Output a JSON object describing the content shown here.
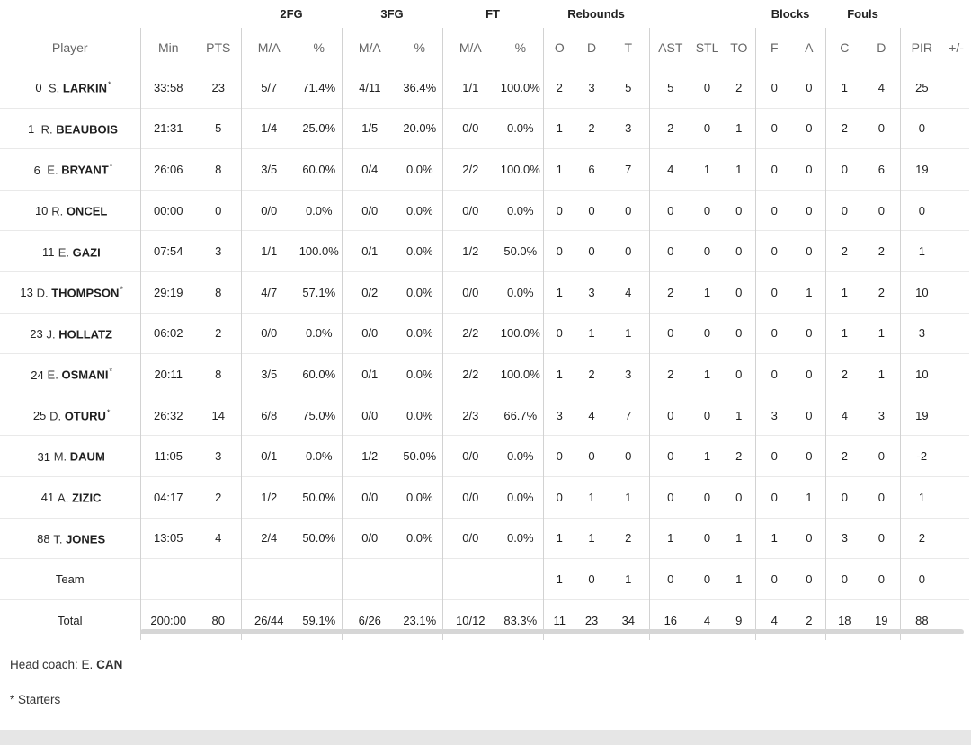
{
  "groups": {
    "fg2": "2FG",
    "fg3": "3FG",
    "ft": "FT",
    "rebounds": "Rebounds",
    "blocks": "Blocks",
    "fouls": "Fouls"
  },
  "columns": [
    "Player",
    "Min",
    "PTS",
    "M/A",
    "%",
    "M/A",
    "%",
    "M/A",
    "%",
    "O",
    "D",
    "T",
    "AST",
    "STL",
    "TO",
    "F",
    "A",
    "C",
    "D",
    "PIR",
    "+/-"
  ],
  "rows": [
    {
      "num": "0",
      "initial": "S.",
      "last": "LARKIN",
      "star": "*",
      "stats": [
        "33:58",
        "23",
        "5/7",
        "71.4%",
        "4/11",
        "36.4%",
        "1/1",
        "100.0%",
        "2",
        "3",
        "5",
        "5",
        "0",
        "2",
        "0",
        "0",
        "1",
        "4",
        "25",
        ""
      ]
    },
    {
      "num": "1",
      "initial": "R.",
      "last": "BEAUBOIS",
      "star": "",
      "stats": [
        "21:31",
        "5",
        "1/4",
        "25.0%",
        "1/5",
        "20.0%",
        "0/0",
        "0.0%",
        "1",
        "2",
        "3",
        "2",
        "0",
        "1",
        "0",
        "0",
        "2",
        "0",
        "0",
        ""
      ]
    },
    {
      "num": "6",
      "initial": "E.",
      "last": "BRYANT",
      "star": "*",
      "stats": [
        "26:06",
        "8",
        "3/5",
        "60.0%",
        "0/4",
        "0.0%",
        "2/2",
        "100.0%",
        "1",
        "6",
        "7",
        "4",
        "1",
        "1",
        "0",
        "0",
        "0",
        "6",
        "19",
        ""
      ]
    },
    {
      "num": "10",
      "initial": "R.",
      "last": "ONCEL",
      "star": "",
      "stats": [
        "00:00",
        "0",
        "0/0",
        "0.0%",
        "0/0",
        "0.0%",
        "0/0",
        "0.0%",
        "0",
        "0",
        "0",
        "0",
        "0",
        "0",
        "0",
        "0",
        "0",
        "0",
        "0",
        ""
      ]
    },
    {
      "num": "11",
      "initial": "E.",
      "last": "GAZI",
      "star": "",
      "stats": [
        "07:54",
        "3",
        "1/1",
        "100.0%",
        "0/1",
        "0.0%",
        "1/2",
        "50.0%",
        "0",
        "0",
        "0",
        "0",
        "0",
        "0",
        "0",
        "0",
        "2",
        "2",
        "1",
        ""
      ]
    },
    {
      "num": "13",
      "initial": "D.",
      "last": "THOMPSON",
      "star": "*",
      "stats": [
        "29:19",
        "8",
        "4/7",
        "57.1%",
        "0/2",
        "0.0%",
        "0/0",
        "0.0%",
        "1",
        "3",
        "4",
        "2",
        "1",
        "0",
        "0",
        "1",
        "1",
        "2",
        "10",
        ""
      ]
    },
    {
      "num": "23",
      "initial": "J.",
      "last": "HOLLATZ",
      "star": "",
      "stats": [
        "06:02",
        "2",
        "0/0",
        "0.0%",
        "0/0",
        "0.0%",
        "2/2",
        "100.0%",
        "0",
        "1",
        "1",
        "0",
        "0",
        "0",
        "0",
        "0",
        "1",
        "1",
        "3",
        ""
      ]
    },
    {
      "num": "24",
      "initial": "E.",
      "last": "OSMANI",
      "star": "*",
      "stats": [
        "20:11",
        "8",
        "3/5",
        "60.0%",
        "0/1",
        "0.0%",
        "2/2",
        "100.0%",
        "1",
        "2",
        "3",
        "2",
        "1",
        "0",
        "0",
        "0",
        "2",
        "1",
        "10",
        ""
      ]
    },
    {
      "num": "25",
      "initial": "D.",
      "last": "OTURU",
      "star": "*",
      "stats": [
        "26:32",
        "14",
        "6/8",
        "75.0%",
        "0/0",
        "0.0%",
        "2/3",
        "66.7%",
        "3",
        "4",
        "7",
        "0",
        "0",
        "1",
        "3",
        "0",
        "4",
        "3",
        "19",
        ""
      ]
    },
    {
      "num": "31",
      "initial": "M.",
      "last": "DAUM",
      "star": "",
      "stats": [
        "11:05",
        "3",
        "0/1",
        "0.0%",
        "1/2",
        "50.0%",
        "0/0",
        "0.0%",
        "0",
        "0",
        "0",
        "0",
        "1",
        "2",
        "0",
        "0",
        "2",
        "0",
        "-2",
        ""
      ]
    },
    {
      "num": "41",
      "initial": "A.",
      "last": "ZIZIC",
      "star": "",
      "stats": [
        "04:17",
        "2",
        "1/2",
        "50.0%",
        "0/0",
        "0.0%",
        "0/0",
        "0.0%",
        "0",
        "1",
        "1",
        "0",
        "0",
        "0",
        "0",
        "1",
        "0",
        "0",
        "1",
        ""
      ]
    },
    {
      "num": "88",
      "initial": "T.",
      "last": "JONES",
      "star": "",
      "stats": [
        "13:05",
        "4",
        "2/4",
        "50.0%",
        "0/0",
        "0.0%",
        "0/0",
        "0.0%",
        "1",
        "1",
        "2",
        "1",
        "0",
        "1",
        "1",
        "0",
        "3",
        "0",
        "2",
        ""
      ]
    }
  ],
  "team_row": {
    "label": "Team",
    "stats": [
      "",
      "",
      "",
      "",
      "",
      "",
      "",
      "",
      "1",
      "0",
      "1",
      "0",
      "0",
      "1",
      "0",
      "0",
      "0",
      "0",
      "0",
      ""
    ]
  },
  "total_row": {
    "label": "Total",
    "stats": [
      "200:00",
      "80",
      "26/44",
      "59.1%",
      "6/26",
      "23.1%",
      "10/12",
      "83.3%",
      "11",
      "23",
      "34",
      "16",
      "4",
      "9",
      "4",
      "2",
      "18",
      "19",
      "88",
      ""
    ]
  },
  "coach": {
    "label": "Head coach: E.",
    "name": "CAN"
  },
  "starters_note": "* Starters"
}
